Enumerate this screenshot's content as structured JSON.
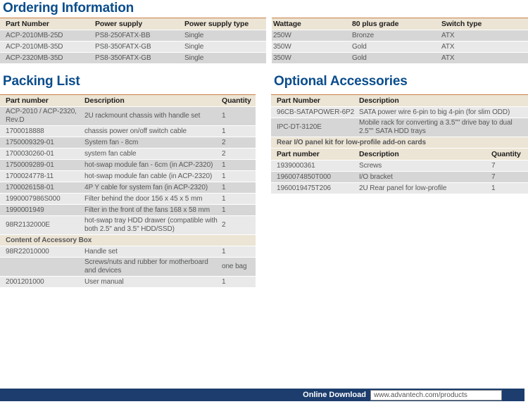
{
  "titles": {
    "ordering": "Ordering Information",
    "packing": "Packing List",
    "optional": "Optional Accessories"
  },
  "tables": {
    "ordering_left": {
      "rows": [
        {
          "t": "header",
          "cells": [
            "Part Number",
            "Power supply",
            "Power supply type"
          ]
        },
        {
          "t": "data",
          "shade": "dark",
          "cells": [
            "ACP-2010MB-25D",
            "PS8-250FATX-BB",
            "Single"
          ]
        },
        {
          "t": "data",
          "shade": "light",
          "cells": [
            "ACP-2010MB-35D",
            "PS8-350FATX-GB",
            "Single"
          ]
        },
        {
          "t": "data",
          "shade": "dark",
          "cells": [
            "ACP-2320MB-35D",
            "PS8-350FATX-GB",
            "Single"
          ]
        }
      ]
    },
    "ordering_right": {
      "rows": [
        {
          "t": "header",
          "cells": [
            "Wattage",
            "80 plus grade",
            "Switch type"
          ]
        },
        {
          "t": "data",
          "shade": "dark",
          "cells": [
            "250W",
            "Bronze",
            "ATX"
          ]
        },
        {
          "t": "data",
          "shade": "light",
          "cells": [
            "350W",
            "Gold",
            "ATX"
          ]
        },
        {
          "t": "data",
          "shade": "dark",
          "cells": [
            "350W",
            "Gold",
            "ATX"
          ]
        }
      ]
    },
    "packing": {
      "rows": [
        {
          "t": "header",
          "cells": [
            "Part number",
            "Description",
            "Quantity"
          ]
        },
        {
          "t": "data",
          "shade": "dark",
          "cells": [
            "ACP-2010 / ACP-2320, Rev.D",
            "2U rackmount chassis with handle set",
            "1"
          ]
        },
        {
          "t": "data",
          "shade": "light",
          "cells": [
            "1700018888",
            "chassis power on/off switch cable",
            "1"
          ]
        },
        {
          "t": "data",
          "shade": "dark",
          "cells": [
            "1750009329-01",
            "System fan - 8cm",
            "2"
          ]
        },
        {
          "t": "data",
          "shade": "light",
          "cells": [
            "1700030260-01",
            "system fan cable",
            "2"
          ]
        },
        {
          "t": "data",
          "shade": "dark",
          "cells": [
            "1750009289-01",
            "hot-swap module fan - 6cm (in ACP-2320)",
            "1"
          ]
        },
        {
          "t": "data",
          "shade": "light",
          "cells": [
            "1700024778-11",
            "hot-swap module fan cable (in ACP-2320)",
            "1"
          ]
        },
        {
          "t": "data",
          "shade": "dark",
          "cells": [
            "1700026158-01",
            "4P Y cable for system fan (in ACP-2320)",
            "1"
          ]
        },
        {
          "t": "data",
          "shade": "light",
          "cells": [
            "1990007986S000",
            "Filter behind the door 156 x 45 x 5 mm",
            "1"
          ]
        },
        {
          "t": "data",
          "shade": "dark",
          "cells": [
            "1990001949",
            "Filter in the front of the fans 168 x 58 mm",
            "1"
          ]
        },
        {
          "t": "data",
          "shade": "light",
          "cells": [
            "98R2132000E",
            "hot-swap tray HDD drawer (compatible with both 2.5\" and 3.5\" HDD/SSD)",
            "2"
          ]
        },
        {
          "t": "section",
          "label": "Content of Accessory Box"
        },
        {
          "t": "data",
          "shade": "light",
          "cells": [
            "98R22010000",
            "Handle set",
            "1"
          ]
        },
        {
          "t": "data",
          "shade": "dark",
          "cells": [
            "",
            "Screws/nuts and rubber for motherboard and devices",
            "one bag"
          ]
        },
        {
          "t": "data",
          "shade": "light",
          "cells": [
            "2001201000",
            "User manual",
            "1"
          ]
        }
      ]
    },
    "optional": {
      "rows": [
        {
          "t": "header",
          "cells": [
            "Part Number",
            "Description",
            ""
          ]
        },
        {
          "t": "data",
          "shade": "light",
          "cells": [
            "96CB-SATAPOWER-6P2",
            "SATA power wire 6-pin to big 4-pin (for slim ODD)",
            ""
          ]
        },
        {
          "t": "data",
          "shade": "dark",
          "cells": [
            "IPC-DT-3120E",
            "Mobile rack for converting a 3.5\"\" drive bay to dual 2.5\"\" SATA HDD trays",
            ""
          ]
        },
        {
          "t": "section",
          "label": "Rear I/O panel kit for low-profile add-on cards"
        },
        {
          "t": "header",
          "cells": [
            "Part number",
            "Description",
            "Quantity"
          ]
        },
        {
          "t": "data",
          "shade": "light",
          "cells": [
            "1939000361",
            "Screws",
            "7"
          ]
        },
        {
          "t": "data",
          "shade": "dark",
          "cells": [
            "1960074850T000",
            "I/O bracket",
            "7"
          ]
        },
        {
          "t": "data",
          "shade": "light",
          "cells": [
            "1960019475T206",
            "2U Rear panel for low-profile",
            "1"
          ]
        }
      ]
    }
  },
  "footer": {
    "label": "Online Download",
    "url": "www.advantech.com/products"
  },
  "colors": {
    "heading_blue": "#0b4d8c",
    "table_header_beige": "#ece4d4",
    "table_top_border_orange": "#c87f48",
    "row_dark_gray": "#d6d6d6",
    "row_light_gray": "#e9e9e9",
    "footer_navy": "#1c3d6d",
    "cell_text_gray": "#57585a"
  }
}
